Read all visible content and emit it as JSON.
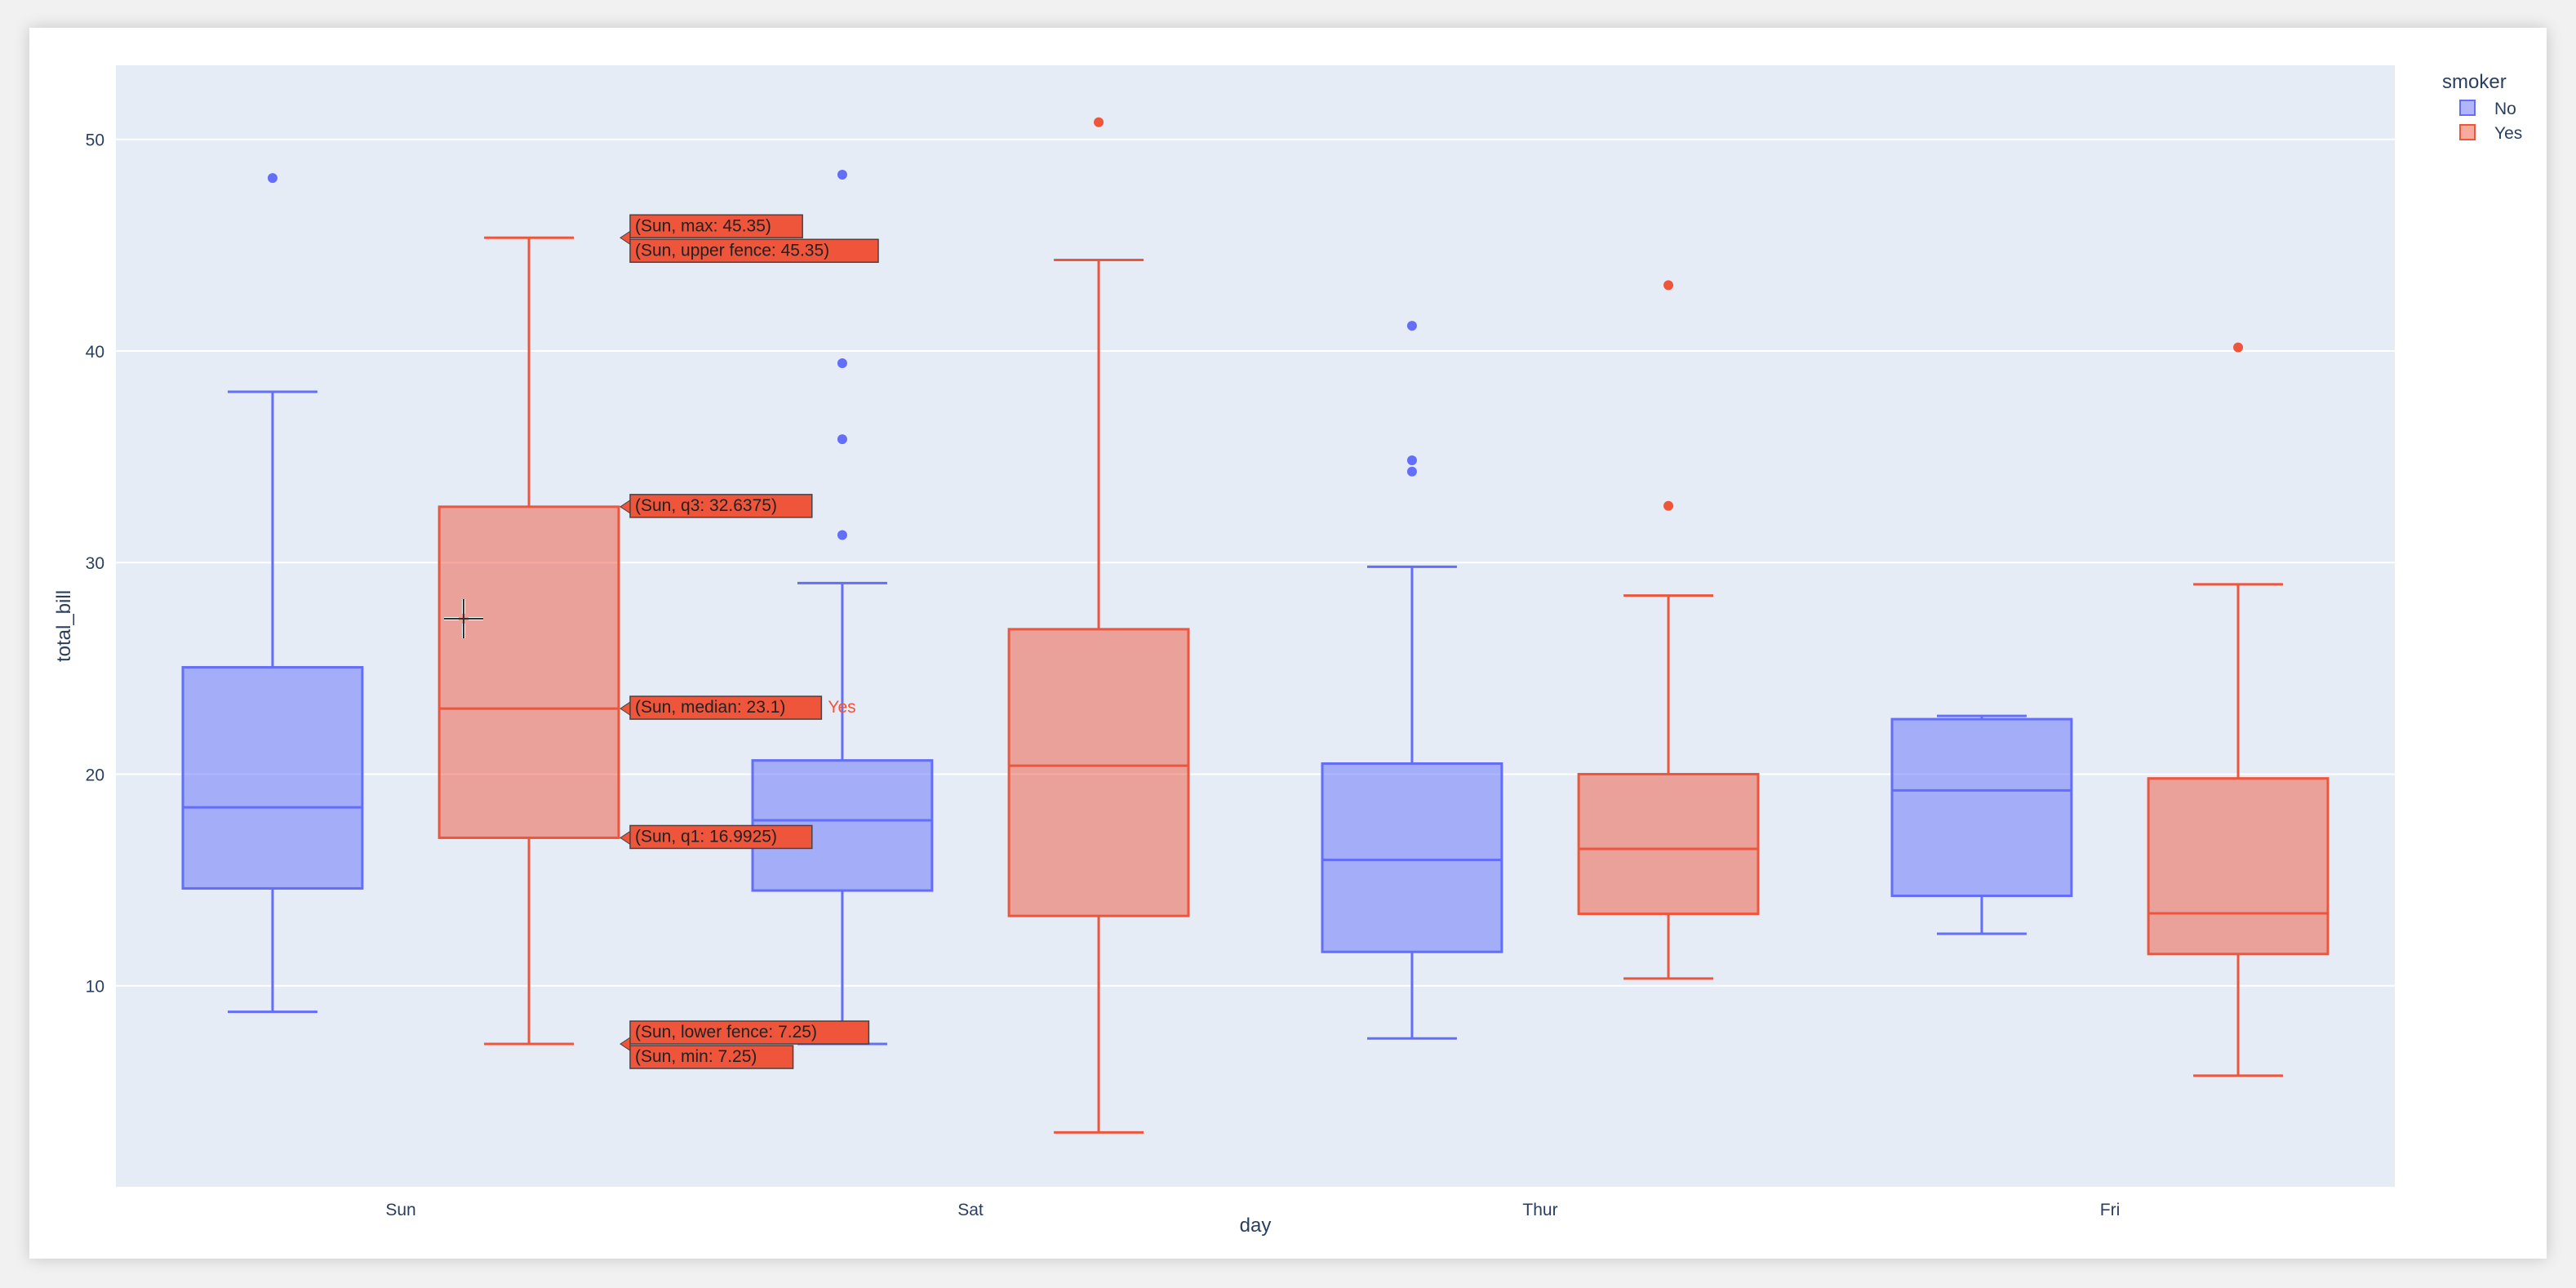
{
  "chart_data": {
    "type": "box",
    "xlabel": "day",
    "ylabel": "total_bill",
    "categories": [
      "Sun",
      "Sat",
      "Thur",
      "Fri"
    ],
    "yticks": [
      10,
      20,
      30,
      40,
      50
    ],
    "ylim": [
      0.5,
      53.5
    ],
    "grid": true,
    "legend": {
      "title": "smoker",
      "placement": "top-right"
    },
    "series": [
      {
        "name": "No",
        "color": "#636efa",
        "boxes": [
          {
            "category": "Sun",
            "min": 8.77,
            "q1": 14.6,
            "median": 18.43,
            "q3": 25.05,
            "max": 38.07,
            "outliers": [
              48.17
            ]
          },
          {
            "category": "Sat",
            "min": 7.25,
            "q1": 14.5,
            "median": 17.82,
            "q3": 20.65,
            "max": 29.03,
            "outliers": [
              31.3,
              35.83,
              39.42,
              48.33
            ]
          },
          {
            "category": "Thur",
            "min": 7.51,
            "q1": 11.6,
            "median": 15.95,
            "q3": 20.5,
            "max": 29.8,
            "outliers": [
              34.3,
              34.83,
              41.19
            ]
          },
          {
            "category": "Fri",
            "min": 12.46,
            "q1": 14.25,
            "median": 19.23,
            "q3": 22.6,
            "max": 22.75,
            "outliers": []
          }
        ]
      },
      {
        "name": "Yes",
        "color": "#ef553b",
        "boxes": [
          {
            "category": "Sun",
            "min": 7.25,
            "q1": 16.9925,
            "median": 23.1,
            "q3": 32.6375,
            "max": 45.35,
            "outliers": []
          },
          {
            "category": "Sat",
            "min": 3.07,
            "q1": 13.3,
            "median": 20.4,
            "q3": 26.85,
            "max": 44.3,
            "outliers": [
              50.81
            ]
          },
          {
            "category": "Thur",
            "min": 10.34,
            "q1": 13.4,
            "median": 16.47,
            "q3": 20.0,
            "max": 28.44,
            "outliers": [
              32.68,
              43.11
            ]
          },
          {
            "category": "Fri",
            "min": 5.75,
            "q1": 11.5,
            "median": 13.42,
            "q3": 19.8,
            "max": 28.97,
            "outliers": [
              40.17
            ]
          }
        ]
      }
    ],
    "hover": {
      "series_label": "Yes",
      "labels": [
        {
          "text": "(Sun, max: 45.35)",
          "value": 45.35
        },
        {
          "text": "(Sun, upper fence: 45.35)",
          "value": 45.35
        },
        {
          "text": "(Sun, q3: 32.6375)",
          "value": 32.6375
        },
        {
          "text": "(Sun, median: 23.1)",
          "value": 23.1
        },
        {
          "text": "(Sun, q1: 16.9925)",
          "value": 16.9925
        },
        {
          "text": "(Sun, lower fence: 7.25)",
          "value": 7.25
        },
        {
          "text": "(Sun, min: 7.25)",
          "value": 7.25
        }
      ]
    }
  }
}
